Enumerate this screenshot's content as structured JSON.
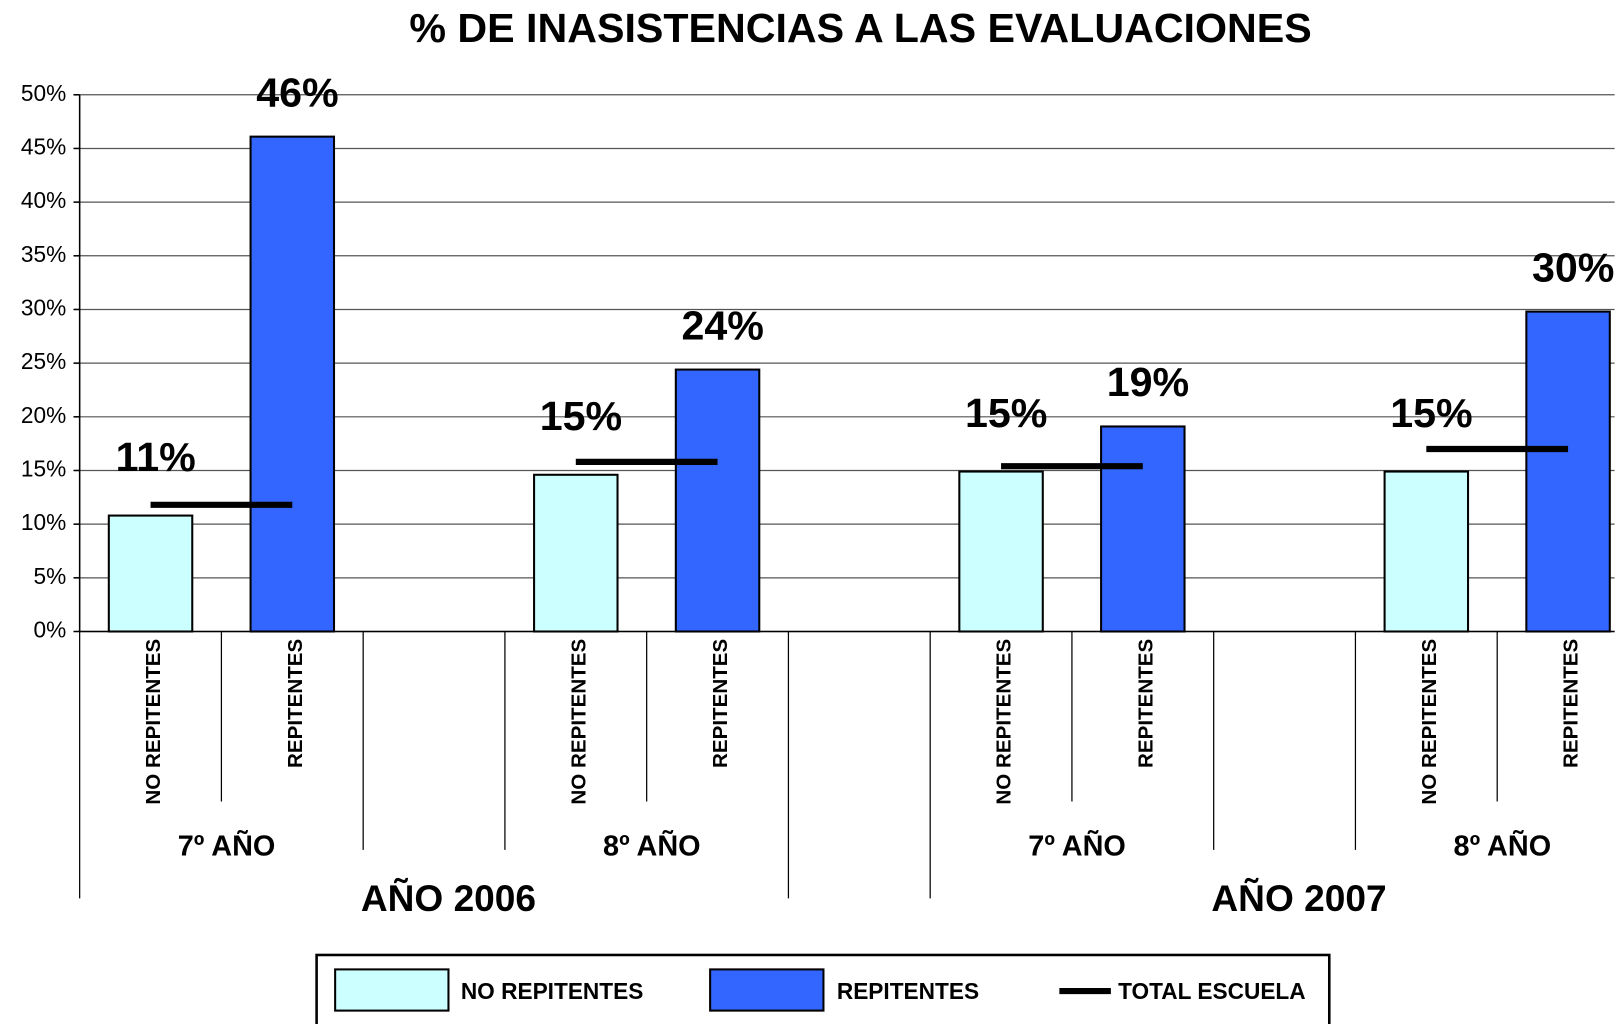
{
  "chart_data": {
    "type": "bar",
    "title": "% DE INASISTENCIAS A LAS EVALUACIONES",
    "groups": [
      "7º AÑO",
      "8º AÑO",
      "7º AÑO",
      "8º AÑO"
    ],
    "years": [
      "AÑO 2006",
      "AÑO 2007"
    ],
    "series": [
      {
        "name": "NO REPITENTES",
        "color": "#ccffff",
        "mark": "bar",
        "values": [
          10.8,
          14.6,
          14.9,
          14.9
        ],
        "value_labels": [
          "11%",
          "15%",
          "15%",
          "15%"
        ]
      },
      {
        "name": "REPITENTES",
        "color": "#3366ff",
        "mark": "bar",
        "values": [
          46.1,
          24.4,
          19.1,
          29.8
        ],
        "value_labels": [
          "46%",
          "24%",
          "19%",
          "30%"
        ]
      },
      {
        "name": "TOTAL ESCUELA",
        "color": "#000000",
        "mark": "segment",
        "values": [
          11.8,
          15.8,
          15.4,
          17.0
        ]
      }
    ],
    "ylim": [
      0,
      50
    ],
    "yticks": [
      {
        "value": 0,
        "label": "0%"
      },
      {
        "value": 5,
        "label": "5%"
      },
      {
        "value": 10,
        "label": "10%"
      },
      {
        "value": 15,
        "label": "15%"
      },
      {
        "value": 20,
        "label": "20%"
      },
      {
        "value": 25,
        "label": "25%"
      },
      {
        "value": 30,
        "label": "30%"
      },
      {
        "value": 35,
        "label": "35%"
      },
      {
        "value": 40,
        "label": "40%"
      },
      {
        "value": 45,
        "label": "45%"
      },
      {
        "value": 50,
        "label": "50%"
      }
    ],
    "grid": true,
    "legend": "bottom"
  }
}
